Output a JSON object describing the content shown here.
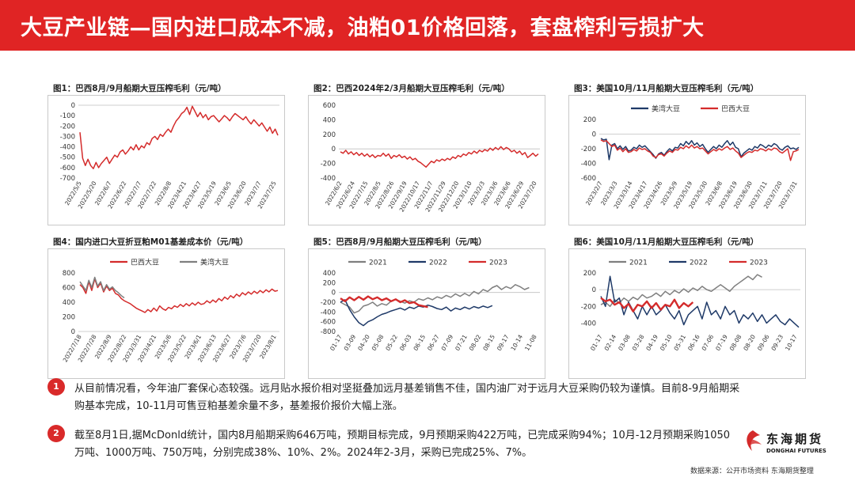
{
  "header": {
    "title": "大豆产业链—国内进口成本不减，油粕01价格回落，套盘榨利亏损扩大"
  },
  "colors": {
    "red": "#d42b2b",
    "blue": "#1f3a68",
    "gray": "#7f7f7f",
    "brand": "#e02424"
  },
  "chart_data": [
    {
      "title": "图1：巴西8月/9月船期大豆压榨毛利（元/吨）",
      "type": "line",
      "ylim": [
        -700,
        0
      ],
      "yticks": [
        0,
        -100,
        -200,
        -300,
        -400,
        -500,
        -600,
        -700
      ],
      "xlabels": [
        "2022/5/5",
        "2022/5/20",
        "2022/6/7",
        "2022/6/22",
        "2022/7/7",
        "2022/7/22",
        "2022/8/8",
        "2023/4/21",
        "2023/4/27",
        "2023/5/19",
        "2023/6/5",
        "2023/6/20",
        "2023/7/7",
        "2023/7/25"
      ],
      "series": [
        {
          "name": "",
          "color": "#d42b2b",
          "values": [
            -260,
            -510,
            -580,
            -520,
            -580,
            -610,
            -550,
            -600,
            -560,
            -530,
            -500,
            -560,
            -520,
            -480,
            -500,
            -450,
            -430,
            -470,
            -440,
            -400,
            -430,
            -380,
            -430,
            -390,
            -410,
            -360,
            -380,
            -320,
            -300,
            -330,
            -280,
            -300,
            -260,
            -230,
            -260,
            -200,
            -150,
            -120,
            -80,
            -60,
            -20,
            -90,
            -10,
            -60,
            -110,
            -70,
            -120,
            -90,
            -140,
            -110,
            -100,
            -130,
            -160,
            -130,
            -100,
            -120,
            -150,
            -110,
            -80,
            -100,
            -120,
            -140,
            -110,
            -150,
            -180,
            -140,
            -170,
            -200,
            -170,
            -210,
            -250,
            -210,
            -270,
            -230,
            -290
          ]
        }
      ]
    },
    {
      "title": "图2：巴西2024年2/3月船期大豆压榨毛利（元/吨）",
      "type": "line",
      "ylim": [
        -400,
        600
      ],
      "yticks": [
        600,
        400,
        200,
        0,
        -200,
        -400
      ],
      "xlabels": [
        "2022/6/2",
        "2022/6/24",
        "2022/7/15",
        "2022/8/5",
        "2022/8/26",
        "2022/9/19",
        "2022/10/17",
        "2022/11/7",
        "2022/11/29",
        "2022/12/20",
        "2023/1/10",
        "2023/2/3",
        "2023/3/6",
        "2023/6/6",
        "2023/6/29",
        "2023/7/20"
      ],
      "series": [
        {
          "name": "",
          "color": "#d42b2b",
          "values": [
            -40,
            -60,
            -20,
            -70,
            -40,
            -80,
            -50,
            -90,
            -60,
            -100,
            -70,
            -110,
            -80,
            -120,
            -90,
            -100,
            -60,
            -100,
            -70,
            -130,
            -90,
            -110,
            -80,
            -120,
            -100,
            -140,
            -110,
            -150,
            -130,
            -170,
            -190,
            -220,
            -250,
            -210,
            -170,
            -190,
            -150,
            -170,
            -140,
            -160,
            -130,
            -150,
            -110,
            -130,
            -90,
            -110,
            -70,
            -90,
            -50,
            -70,
            -30,
            -60,
            -20,
            -40,
            -10,
            -30,
            10,
            -20,
            20,
            -10,
            30,
            -10,
            20,
            0,
            -40,
            -20,
            -60,
            -30,
            -80,
            -50,
            -120,
            -90,
            -60,
            -100,
            -70
          ]
        }
      ]
    },
    {
      "title": "图3：美国10月/11月船期大豆压榨毛利（元/吨）",
      "type": "line",
      "ylim": [
        -600,
        200
      ],
      "yticks": [
        200,
        0,
        -200,
        -400,
        -600
      ],
      "xlabels": [
        "2023/2/7",
        "2023/3/3",
        "2023/3/14",
        "2023/4/17",
        "2023/4/26",
        "2023/5/9",
        "2023/5/19",
        "2023/5/30",
        "2023/6/8",
        "2023/6/19",
        "2023/6/30",
        "2023/7/11",
        "2023/7/20",
        "2023/7/31"
      ],
      "series": [
        {
          "name": "美湾大豆",
          "color": "#1f3a68",
          "values": [
            -60,
            -80,
            -70,
            -350,
            -150,
            -130,
            -200,
            -160,
            -210,
            -170,
            -230,
            -220,
            -180,
            -200,
            -150,
            -180,
            -160,
            -200,
            -240,
            -280,
            -330,
            -270,
            -250,
            -290,
            -240,
            -200,
            -230,
            -180,
            -190,
            -130,
            -160,
            -100,
            -140,
            -90,
            -150,
            -120,
            -170,
            -140,
            -200,
            -250,
            -210,
            -170,
            -200,
            -150,
            -180,
            -130,
            -90,
            -150,
            -110,
            -180,
            -200,
            -310,
            -260,
            -230,
            -200,
            -220,
            -170,
            -190,
            -140,
            -160,
            -190,
            -150,
            -170,
            -130,
            -150,
            -200,
            -220,
            -180,
            -160,
            -200,
            -190,
            -210,
            -180
          ]
        },
        {
          "name": "巴西大豆",
          "color": "#d42b2b",
          "values": [
            -80,
            -100,
            -90,
            -130,
            -170,
            -150,
            -220,
            -190,
            -240,
            -200,
            -250,
            -240,
            -210,
            -230,
            -190,
            -210,
            -200,
            -230,
            -250,
            -300,
            -320,
            -280,
            -270,
            -300,
            -260,
            -230,
            -250,
            -210,
            -220,
            -180,
            -200,
            -160,
            -190,
            -150,
            -190,
            -170,
            -200,
            -190,
            -230,
            -270,
            -240,
            -210,
            -230,
            -200,
            -220,
            -190,
            -170,
            -210,
            -190,
            -230,
            -260,
            -320,
            -290,
            -260,
            -240,
            -250,
            -220,
            -230,
            -200,
            -210,
            -230,
            -200,
            -220,
            -190,
            -200,
            -240,
            -260,
            -230,
            -200,
            -360,
            -240,
            -230,
            -210
          ]
        }
      ]
    },
    {
      "title": "图4：国内进口大豆折豆粕M01基差成本价（元/吨）",
      "type": "line",
      "ylim": [
        0,
        800
      ],
      "yticks": [
        800,
        600,
        400,
        200,
        0
      ],
      "xlabels": [
        "2022/7/18",
        "2022/7/28",
        "2022/8/9",
        "2022/8/22",
        "2023/3/31",
        "2023/4/21",
        "2023/5/6",
        "2023/5/22",
        "2023/6/1",
        "2023/6/13",
        "2023/6/27",
        "2023/7/6",
        "2023/7/20",
        "2023/8/1"
      ],
      "series": [
        {
          "name": "巴西大豆",
          "color": "#d42b2b",
          "values": [
            640,
            600,
            520,
            680,
            560,
            720,
            600,
            660,
            540,
            620,
            560,
            590,
            520,
            500,
            450,
            420,
            400,
            380,
            350,
            320,
            300,
            280,
            260,
            300,
            270,
            320,
            280,
            350,
            310,
            290,
            330,
            310,
            350,
            330,
            370,
            340,
            380,
            350,
            390,
            360,
            400,
            370,
            380,
            420,
            390,
            430,
            400,
            450,
            420,
            470,
            440,
            490,
            460,
            510,
            480,
            530,
            500,
            540,
            510,
            550,
            520,
            560,
            530,
            570,
            540,
            580,
            550,
            560
          ]
        },
        {
          "name": "美湾大豆",
          "color": "#7f7f7f",
          "values": [
            680,
            620,
            560,
            700,
            600,
            740,
            620,
            680,
            560,
            640,
            580,
            610,
            560,
            530,
            490,
            460,
            null
          ]
        }
      ]
    },
    {
      "title": "图5：巴西8月/9月船期大豆压榨毛利（元/吨）",
      "type": "line",
      "ylim": [
        -800,
        400
      ],
      "yticks": [
        400,
        200,
        0,
        -200,
        -400,
        -600,
        -800
      ],
      "xlabels": [
        "01-17",
        "03-09",
        "04-20",
        "05-08",
        "05-22",
        "06-03",
        "06-15",
        "06-27",
        "07-09",
        "07-21",
        "08-02",
        "08-15",
        "09-17",
        "10-14",
        "11-08"
      ],
      "series": [
        {
          "name": "2021",
          "color": "#7f7f7f",
          "values": [
            -200,
            -250,
            -300,
            -420,
            -380,
            -280,
            -250,
            -200,
            -280,
            -230,
            -260,
            -180,
            -140,
            -180,
            -220,
            -170,
            -200,
            -130,
            -160,
            -110,
            -150,
            -90,
            -120,
            -60,
            -100,
            -30,
            -80,
            -20,
            -70,
            20,
            -30,
            60,
            20,
            100,
            140,
            60,
            120,
            80,
            160,
            120,
            60,
            100
          ]
        },
        {
          "name": "2022",
          "color": "#1f3a68",
          "values": [
            -200,
            -150,
            -350,
            -500,
            -620,
            -680,
            -600,
            -560,
            -500,
            -450,
            -420,
            -380,
            -350,
            -320,
            -360,
            -300,
            -330,
            -280,
            -300,
            -260,
            -290,
            -330,
            -350,
            -300,
            -380,
            -320,
            -350,
            -300,
            -340,
            -290,
            -320,
            -280,
            -310,
            -270
          ]
        },
        {
          "name": "2023",
          "color": "#d42b2b",
          "values": [
            -120,
            -180,
            -100,
            -160,
            -90,
            -150,
            -80,
            -140,
            -100,
            -160,
            -120,
            -180,
            -140,
            -200,
            -160,
            -220,
            -200,
            -260,
            -280,
            -300
          ]
        }
      ]
    },
    {
      "title": "图6：美国10月/11月船期大豆压榨毛利（元/吨）",
      "type": "line",
      "ylim": [
        -500,
        200
      ],
      "yticks": [
        200,
        0,
        -200,
        -400
      ],
      "xlabels": [
        "01-17",
        "02-14",
        "03-08",
        "03-28",
        "04-19",
        "05-10",
        "05-31",
        "06-16",
        "07-06",
        "07-19",
        "08-08",
        "08-20",
        "09-06",
        "09-23",
        "10-17"
      ],
      "series": [
        {
          "name": "2021",
          "color": "#7f7f7f",
          "values": [
            -180,
            -150,
            -200,
            -120,
            -160,
            -100,
            -140,
            -90,
            -120,
            -60,
            -100,
            -80,
            -40,
            -80,
            -20,
            -60,
            -10,
            -40,
            10,
            -30,
            20,
            -10,
            40,
            0,
            -20,
            20,
            60,
            20,
            -20,
            40,
            80,
            120,
            160,
            120,
            180,
            150
          ]
        },
        {
          "name": "2022",
          "color": "#1f3a68",
          "values": [
            -80,
            -200,
            160,
            -150,
            -100,
            -300,
            -150,
            -250,
            -350,
            -200,
            -300,
            -200,
            -300,
            -250,
            -180,
            -280,
            -350,
            -250,
            -420,
            -300,
            -250,
            -200,
            -350,
            -150,
            -300,
            -250,
            -350,
            -200,
            -300,
            -250,
            -400,
            -300,
            -350,
            -280,
            -380,
            -300,
            -400,
            -350,
            -300,
            -380,
            -420,
            -350,
            -400,
            -450
          ]
        },
        {
          "name": "2023",
          "color": "#d42b2b",
          "values": [
            -100,
            -140,
            -120,
            -180,
            -150,
            -220,
            -170,
            -260,
            -180,
            -200,
            -140,
            -220,
            -160,
            -240,
            -180,
            -200,
            -120,
            -220,
            -160,
            -200,
            -150
          ]
        }
      ]
    }
  ],
  "notes": [
    {
      "num": "1",
      "text": "从目前情况看，今年油厂套保心态较强。远月贴水报价相对坚挺叠加远月基差销售不佳，国内油厂对于远月大豆采购仍较为谨慎。目前8-9月船期采购基本完成，10-11月可售豆粕基差余量不多，基差报价报价大幅上涨。"
    },
    {
      "num": "2",
      "text": "截至8月1日,据McDonld统计，国内8月船期采购646万吨，预期目标完成，9月预期采购422万吨，已完成采购94%；10月-12月预期采购1050万吨、1000万吨、750万吨，分别完成38%、10%、2%。2024年2-3月，采购已完成25%、7%。"
    }
  ],
  "logo": {
    "cn": "东海期货",
    "en": "DONGHAI FUTURES"
  },
  "source": "数据来源：公开市场资料 东海期货整理"
}
